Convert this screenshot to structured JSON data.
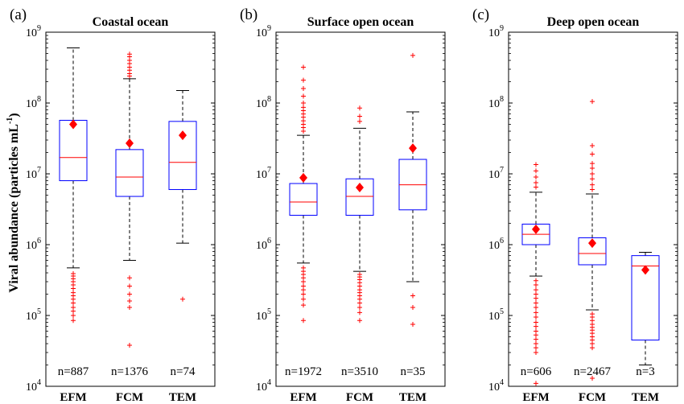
{
  "figure": {
    "ylabel": "Viral abundance (particles mL",
    "ylabel_sup": "-1",
    "ylabel_close": ")"
  },
  "chart_data": [
    {
      "type": "box",
      "panel_label": "(a)",
      "title": "Coastal ocean",
      "categories": [
        "EFM",
        "FCM",
        "TEM"
      ],
      "counts": [
        "n=887",
        "n=1376",
        "n=74"
      ],
      "yscale": "log",
      "ylim": [
        10000,
        1000000000
      ],
      "yticks": [
        {
          "value": 10000,
          "base": "10",
          "exp": "4"
        },
        {
          "value": 100000,
          "base": "10",
          "exp": "5"
        },
        {
          "value": 1000000,
          "base": "10",
          "exp": "6"
        },
        {
          "value": 10000000,
          "base": "10",
          "exp": "7"
        },
        {
          "value": 100000000,
          "base": "10",
          "exp": "8"
        },
        {
          "value": 1000000000,
          "base": "10",
          "exp": "9"
        }
      ],
      "boxes": [
        {
          "q1": 8000000,
          "median": 17000000,
          "q3": 57000000,
          "whisker_low": 470000,
          "whisker_high": 600000000,
          "mean": 50000000,
          "outliers": [
            85000,
            100000,
            115000,
            130000,
            150000,
            170000,
            190000,
            210000,
            240000,
            270000,
            300000,
            330000,
            360000,
            390000
          ]
        },
        {
          "q1": 4800000,
          "median": 9000000,
          "q3": 22000000,
          "whisker_low": 600000,
          "whisker_high": 220000000,
          "mean": 27000000,
          "outliers": [
            38000,
            130000,
            160000,
            200000,
            260000,
            340000,
            240000000,
            260000000,
            290000000,
            320000000,
            360000000,
            400000000,
            450000000,
            490000000
          ]
        },
        {
          "q1": 6000000,
          "median": 14500000,
          "q3": 55000000,
          "whisker_low": 1050000,
          "whisker_high": 150000000,
          "mean": 35000000,
          "outliers": [
            170000
          ]
        }
      ]
    },
    {
      "type": "box",
      "panel_label": "(b)",
      "title": "Surface open ocean",
      "categories": [
        "EFM",
        "FCM",
        "TEM"
      ],
      "counts": [
        "n=1972",
        "n=3510",
        "n=35"
      ],
      "yscale": "log",
      "ylim": [
        10000,
        1000000000
      ],
      "yticks": [
        {
          "value": 10000,
          "base": "10",
          "exp": "4"
        },
        {
          "value": 100000,
          "base": "10",
          "exp": "5"
        },
        {
          "value": 1000000,
          "base": "10",
          "exp": "6"
        },
        {
          "value": 10000000,
          "base": "10",
          "exp": "7"
        },
        {
          "value": 100000000,
          "base": "10",
          "exp": "8"
        },
        {
          "value": 1000000000,
          "base": "10",
          "exp": "9"
        }
      ],
      "boxes": [
        {
          "q1": 2600000,
          "median": 4000000,
          "q3": 7300000,
          "whisker_low": 550000,
          "whisker_high": 35000000,
          "mean": 8800000,
          "outliers": [
            85000,
            140000,
            170000,
            200000,
            230000,
            260000,
            300000,
            340000,
            380000,
            420000,
            470000,
            40000000,
            45000000,
            50000000,
            56000000,
            63000000,
            70000000,
            78000000,
            87000000,
            100000000,
            125000000,
            160000000,
            210000000,
            320000000
          ]
        },
        {
          "q1": 2600000,
          "median": 4800000,
          "q3": 8500000,
          "whisker_low": 420000,
          "whisker_high": 44000000,
          "mean": 6400000,
          "outliers": [
            85000,
            110000,
            130000,
            150000,
            170000,
            190000,
            210000,
            230000,
            260000,
            290000,
            320000,
            350000,
            380000,
            55000000,
            65000000,
            85000000
          ]
        },
        {
          "q1": 3100000,
          "median": 7000000,
          "q3": 16000000,
          "whisker_low": 300000,
          "whisker_high": 75000000,
          "mean": 23000000,
          "outliers": [
            75000,
            130000,
            190000,
            470000000
          ]
        }
      ]
    },
    {
      "type": "box",
      "panel_label": "(c)",
      "title": "Deep open ocean",
      "categories": [
        "EFM",
        "FCM",
        "TEM"
      ],
      "counts": [
        "n=606",
        "n=2467",
        "n=3"
      ],
      "yscale": "log",
      "ylim": [
        10000,
        1000000000
      ],
      "yticks": [
        {
          "value": 10000,
          "base": "10",
          "exp": "4"
        },
        {
          "value": 100000,
          "base": "10",
          "exp": "5"
        },
        {
          "value": 1000000,
          "base": "10",
          "exp": "6"
        },
        {
          "value": 10000000,
          "base": "10",
          "exp": "7"
        },
        {
          "value": 100000000,
          "base": "10",
          "exp": "8"
        },
        {
          "value": 1000000000,
          "base": "10",
          "exp": "9"
        }
      ],
      "boxes": [
        {
          "q1": 1000000,
          "median": 1400000,
          "q3": 1950000,
          "whisker_low": 360000,
          "whisker_high": 5500000,
          "mean": 1650000,
          "outliers": [
            11000,
            30000,
            35000,
            40000,
            46000,
            53000,
            60000,
            70000,
            80000,
            95000,
            110000,
            130000,
            150000,
            175000,
            200000,
            230000,
            270000,
            310000,
            6500000,
            7500000,
            9000000,
            11000000,
            13500000
          ]
        },
        {
          "q1": 520000,
          "median": 750000,
          "q3": 1250000,
          "whisker_low": 120000,
          "whisker_high": 5200000,
          "mean": 1050000,
          "outliers": [
            13000,
            35000,
            40000,
            45000,
            50000,
            56000,
            62000,
            68000,
            75000,
            85000,
            95000,
            105000,
            6000000,
            7000000,
            8500000,
            10000000,
            12000000,
            14000000,
            19000000,
            25000000,
            105000000
          ]
        },
        {
          "q1": 45000,
          "median": 500000,
          "q3": 700000,
          "whisker_low": 20000,
          "whisker_high": 780000,
          "mean": 440000,
          "outliers": []
        }
      ]
    }
  ],
  "colors": {
    "box": "#0000ff",
    "median": "#ff0000",
    "mean": "#ff0000",
    "outlier": "#ff0000",
    "whisker": "#000000",
    "axis": "#000000"
  }
}
